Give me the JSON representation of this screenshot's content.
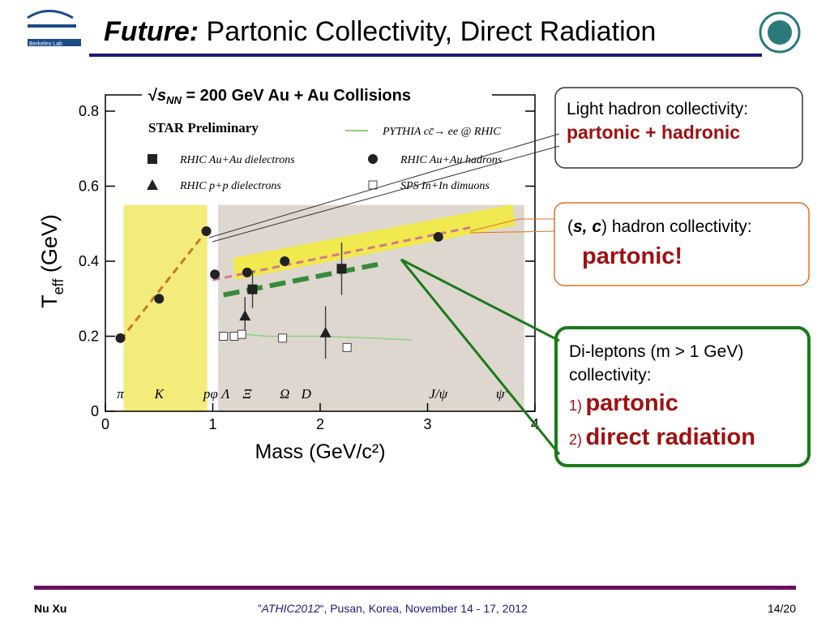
{
  "slide": {
    "title": {
      "emph": "Future:",
      "rest": "Partonic Collectivity, Direct Radiation"
    },
    "logo_left": "Berkeley Lab",
    "box1": {
      "line1": "Light hadron collectivity:",
      "line2": "partonic + hadronic"
    },
    "box2": {
      "open": "(",
      "emph": "s, c",
      "rest": ") hadron collectivity:",
      "line2": "partonic!"
    },
    "box3": {
      "line1": "Di-leptons (m > 1 GeV)",
      "line2": "collectivity:",
      "n1": "1)",
      "item1": "partonic",
      "n2": "2)",
      "item2": "direct radiation"
    },
    "footer": {
      "author": "Nu Xu",
      "q1": "”",
      "conf": "ATHIC2012",
      "rest": "“, Pusan, Korea, November  14 - 17, 2012",
      "page": "14/20"
    }
  },
  "chart_data": {
    "type": "scatter",
    "title": {
      "root": "√",
      "s": "s",
      "sub": "NN",
      "rest": " = 200 GeV Au + Au Collisions"
    },
    "subtitle": "STAR Preliminary",
    "xlabel": "Mass (GeV/c²)",
    "ylabel": {
      "main": "T",
      "sub": "eff",
      "unit": " (GeV)"
    },
    "xlim": [
      0,
      4
    ],
    "ylim": [
      0,
      0.8
    ],
    "xticks": [
      0,
      1,
      2,
      3,
      4
    ],
    "yticks": [
      0,
      0.2,
      0.4,
      0.6,
      0.8
    ],
    "regions": [
      {
        "color": "#f3ec7a",
        "x": [
          0.17,
          0.95
        ],
        "y": [
          0,
          0.55
        ]
      },
      {
        "color": "#ddd7cf",
        "x": [
          1.05,
          3.9
        ],
        "y": [
          0,
          0.55
        ]
      }
    ],
    "fits": [
      {
        "color": "#c8782a",
        "x": [
          0.14,
          0.94
        ],
        "y": [
          0.19,
          0.48
        ]
      },
      {
        "color": "#d47a86",
        "x": [
          1.0,
          3.4
        ],
        "y": [
          0.35,
          0.49
        ]
      },
      {
        "color": "#3a8a3a",
        "x": [
          1.1,
          2.6
        ],
        "y": [
          0.31,
          0.395
        ]
      }
    ],
    "series": [
      {
        "name": "PYTHIA cc̄→ ee @ RHIC",
        "marker": "line",
        "color": "#8fcf7f",
        "x": [
          1.1,
          1.5,
          2.0,
          2.5,
          2.85
        ],
        "values": [
          0.21,
          0.2,
          0.2,
          0.195,
          0.19
        ]
      },
      {
        "name": "RHIC Au+Au dielectrons",
        "marker": "square",
        "color": "#222222",
        "x": [
          1.37,
          2.2
        ],
        "values": [
          0.325,
          0.38
        ],
        "yerr": [
          0.05,
          0.07
        ]
      },
      {
        "name": "RHIC Au+Au hadrons",
        "marker": "circle",
        "color": "#222222",
        "x": [
          0.14,
          0.5,
          0.94,
          1.02,
          1.32,
          1.67,
          3.1
        ],
        "values": [
          0.195,
          0.3,
          0.48,
          0.365,
          0.37,
          0.4,
          0.465
        ]
      },
      {
        "name": "RHIC p+p dielectrons",
        "marker": "triangle",
        "color": "#222222",
        "x": [
          1.3,
          2.05
        ],
        "values": [
          0.255,
          0.21
        ],
        "yerr": [
          0.05,
          0.07
        ]
      },
      {
        "name": "SPS In+In dimuons",
        "marker": "open-square",
        "color": "#444444",
        "x": [
          1.1,
          1.2,
          1.27,
          1.65,
          2.25
        ],
        "values": [
          0.2,
          0.2,
          0.205,
          0.195,
          0.17
        ]
      }
    ],
    "mass_labels": [
      {
        "label": "π",
        "x": 0.14
      },
      {
        "label": "K",
        "x": 0.5
      },
      {
        "label": "pφ",
        "x": 0.98
      },
      {
        "label": "Λ",
        "x": 1.12
      },
      {
        "label": "Ξ",
        "x": 1.32
      },
      {
        "label": "Ω",
        "x": 1.67
      },
      {
        "label": "D",
        "x": 1.87
      },
      {
        "label": "J/ψ",
        "x": 3.1
      },
      {
        "label": "ψ'",
        "x": 3.69
      }
    ]
  }
}
